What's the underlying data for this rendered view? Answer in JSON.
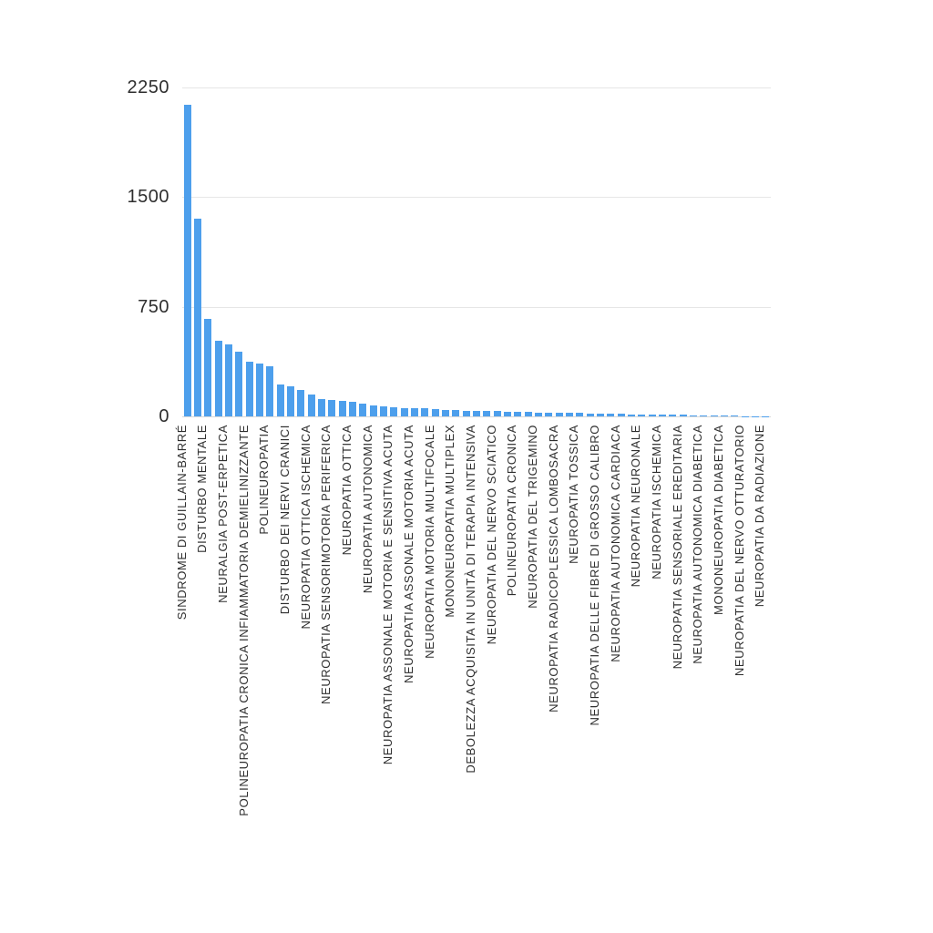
{
  "chart_data": {
    "type": "bar",
    "title": "",
    "xlabel": "",
    "ylabel": "",
    "ylim": [
      0,
      2250
    ],
    "yticks": [
      "0",
      "750",
      "1500",
      "2250"
    ],
    "grid": "horizontal",
    "legend": "none",
    "bar_color": "#4d9fec",
    "grid_color": "#e6e6e6",
    "axis_text_color": "#2e2e2e",
    "x_labels_shown_every_other_bar": true,
    "bars": [
      {
        "label": "SINDROME DI GUILLAIN-BARRÉ",
        "value": 2130
      },
      {
        "label": "",
        "value": 1350
      },
      {
        "label": "DISTURBO MENTALE",
        "value": 670
      },
      {
        "label": "",
        "value": 515
      },
      {
        "label": "NEURALGIA POST-ERPETICA",
        "value": 490
      },
      {
        "label": "",
        "value": 445
      },
      {
        "label": "POLINEUROPATIA CRONICA INFIAMMATORIA DEMIELINIZZANTE",
        "value": 375
      },
      {
        "label": "",
        "value": 360
      },
      {
        "label": "POLINEUROPATIA",
        "value": 340
      },
      {
        "label": "",
        "value": 220
      },
      {
        "label": "DISTURBO DEI NERVI CRANICI",
        "value": 205
      },
      {
        "label": "",
        "value": 178
      },
      {
        "label": "NEUROPATIA OTTICA ISCHEMICA",
        "value": 148
      },
      {
        "label": "",
        "value": 120
      },
      {
        "label": "NEUROPATIA SENSORIMOTORIA PERIFERICA",
        "value": 112
      },
      {
        "label": "",
        "value": 108
      },
      {
        "label": "NEUROPATIA OTTICA",
        "value": 98
      },
      {
        "label": "",
        "value": 88
      },
      {
        "label": "NEUROPATIA AUTONOMICA",
        "value": 76
      },
      {
        "label": "",
        "value": 66
      },
      {
        "label": "NEUROPATIA ASSONALE MOTORIA E SENSITIVA ACUTA",
        "value": 63
      },
      {
        "label": "",
        "value": 58
      },
      {
        "label": "NEUROPATIA ASSONALE MOTORIA ACUTA",
        "value": 56
      },
      {
        "label": "",
        "value": 55
      },
      {
        "label": "NEUROPATIA MOTORIA MULTIFOCALE",
        "value": 52
      },
      {
        "label": "",
        "value": 43
      },
      {
        "label": "MONONEUROPATIA MULTIPLEX",
        "value": 41
      },
      {
        "label": "",
        "value": 39
      },
      {
        "label": "DEBOLEZZA ACQUISITA IN UNITÀ DI TERAPIA INTENSIVA",
        "value": 38
      },
      {
        "label": "",
        "value": 36
      },
      {
        "label": "NEUROPATIA DEL NERVO SCIATICO",
        "value": 35
      },
      {
        "label": "",
        "value": 33
      },
      {
        "label": "POLINEUROPATIA CRONICA",
        "value": 32
      },
      {
        "label": "",
        "value": 30
      },
      {
        "label": "NEUROPATIA DEL TRIGEMINO",
        "value": 28
      },
      {
        "label": "",
        "value": 26
      },
      {
        "label": "NEUROPATIA RADICOPLESSICA LOMBOSACRA",
        "value": 25
      },
      {
        "label": "",
        "value": 23
      },
      {
        "label": "NEUROPATIA TOSSICA",
        "value": 22
      },
      {
        "label": "",
        "value": 20
      },
      {
        "label": "NEUROPATIA DELLE FIBRE DI GROSSO CALIBRO",
        "value": 19
      },
      {
        "label": "",
        "value": 18
      },
      {
        "label": "NEUROPATIA AUTONOMICA CARDIACA",
        "value": 16
      },
      {
        "label": "",
        "value": 15
      },
      {
        "label": "NEUROPATIA NEURONALE",
        "value": 14
      },
      {
        "label": "",
        "value": 13
      },
      {
        "label": "NEUROPATIA ISCHEMICA",
        "value": 12
      },
      {
        "label": "",
        "value": 11
      },
      {
        "label": "NEUROPATIA SENSORIALE EREDITARIA",
        "value": 10
      },
      {
        "label": "",
        "value": 8
      },
      {
        "label": "NEUROPATIA AUTONOMICA DIABETICA",
        "value": 7
      },
      {
        "label": "",
        "value": 6
      },
      {
        "label": "MONONEUROPATIA DIABETICA",
        "value": 5
      },
      {
        "label": "",
        "value": 4
      },
      {
        "label": "NEUROPATIA DEL NERVO OTTURATORIO",
        "value": 3
      },
      {
        "label": "",
        "value": 2
      },
      {
        "label": "NEUROPATIA DA RADIAZIONE",
        "value": 2
      }
    ]
  }
}
